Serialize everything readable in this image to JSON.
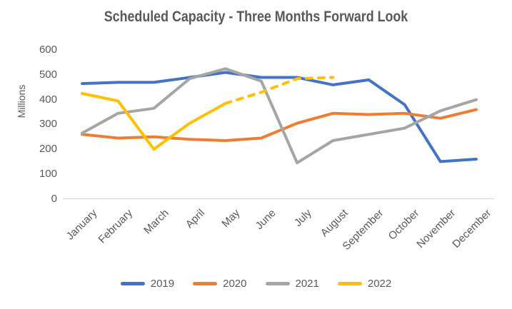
{
  "title": "Scheduled Capacity - Three Months Forward Look",
  "y_axis": {
    "label": "Millions",
    "ticks": [
      0,
      100,
      200,
      300,
      400,
      500,
      600
    ],
    "min": 0,
    "max": 600
  },
  "chart_data": {
    "type": "line",
    "title": "Scheduled Capacity - Three Months Forward Look",
    "xlabel": "",
    "ylabel": "Millions",
    "ylim": [
      0,
      600
    ],
    "ytick_step": 100,
    "grid": false,
    "legend_position": "bottom",
    "categories": [
      "January",
      "February",
      "March",
      "April",
      "May",
      "June",
      "July",
      "August",
      "September",
      "October",
      "November",
      "December"
    ],
    "series": [
      {
        "name": "2019",
        "color": "#4472C4",
        "style": "solid",
        "values": [
          465,
          470,
          470,
          490,
          510,
          490,
          490,
          460,
          480,
          380,
          150,
          160
        ]
      },
      {
        "name": "2020",
        "color": "#ED7D31",
        "style": "solid",
        "values": [
          260,
          245,
          250,
          240,
          235,
          245,
          305,
          345,
          340,
          345,
          325,
          360
        ]
      },
      {
        "name": "2021",
        "color": "#A5A5A5",
        "style": "solid",
        "values": [
          265,
          345,
          365,
          485,
          525,
          475,
          145,
          235,
          260,
          285,
          355,
          400
        ]
      },
      {
        "name": "2022",
        "color": "#FFC000",
        "style": "solid_then_dashed",
        "dashed_from_index": 4,
        "dashed_from_month": "May",
        "values": [
          425,
          395,
          200,
          305,
          385,
          430,
          485,
          490
        ]
      }
    ]
  },
  "legend": {
    "items": [
      {
        "label": "2019",
        "color": "#4472C4"
      },
      {
        "label": "2020",
        "color": "#ED7D31"
      },
      {
        "label": "2021",
        "color": "#A5A5A5"
      },
      {
        "label": "2022",
        "color": "#FFC000"
      }
    ]
  },
  "colors": {
    "axis_line": "#D9D9D9",
    "text": "#595959",
    "background": "#FFFFFF"
  }
}
